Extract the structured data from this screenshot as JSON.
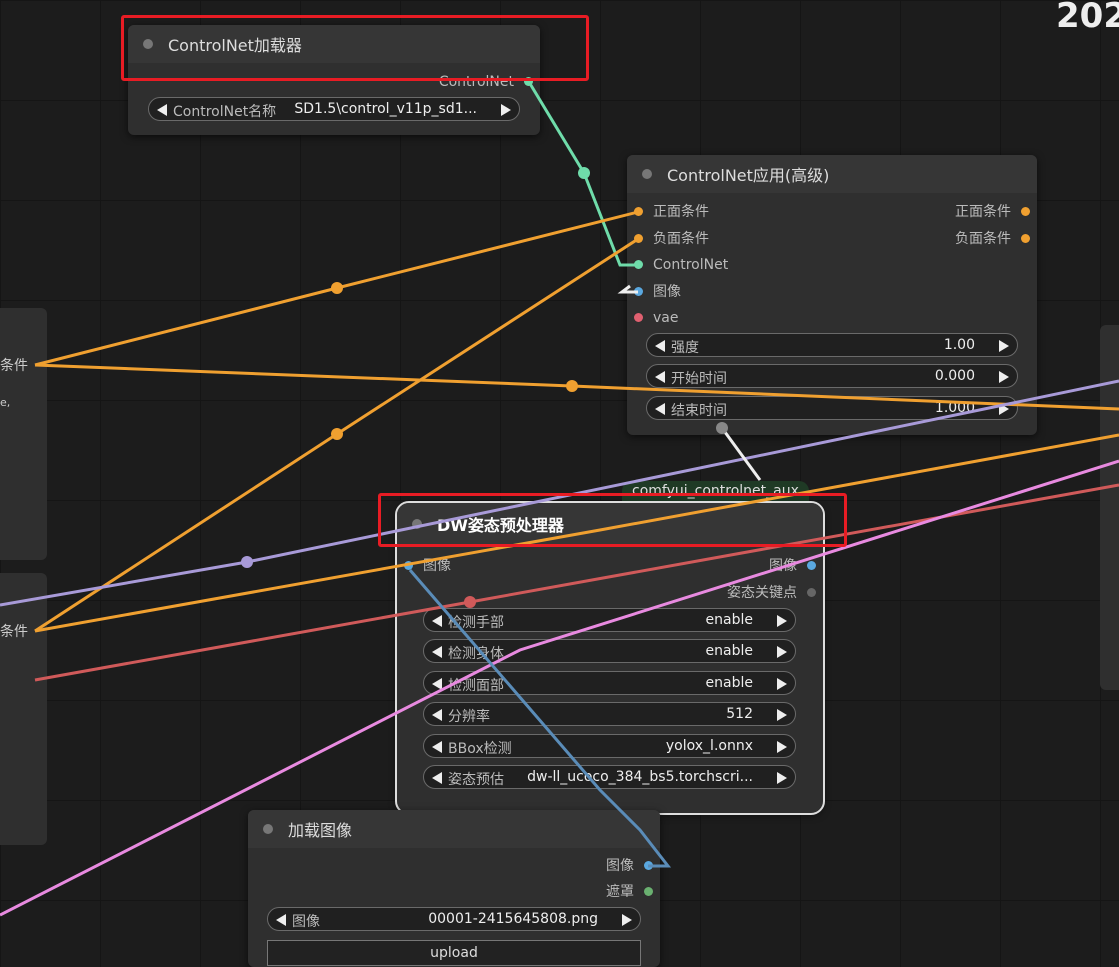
{
  "corner_text": "202",
  "side_labels": [
    "条件",
    "e,",
    "条件"
  ],
  "nodes": [
    {
      "title": "ControlNet加载器",
      "inputs": [],
      "outputs": [
        "ControlNet"
      ],
      "widgets": [
        {
          "label": "ControlNet名称",
          "value": "SD1.5\\control_v11p_sd1..."
        }
      ]
    },
    {
      "title": "ControlNet应用(高级)",
      "inputs": [
        "正面条件",
        "负面条件",
        "ControlNet",
        "图像",
        "vae"
      ],
      "outputs": [
        "正面条件",
        "负面条件"
      ],
      "widgets": [
        {
          "label": "强度",
          "value": "1.00"
        },
        {
          "label": "开始时间",
          "value": "0.000"
        },
        {
          "label": "结束时间",
          "value": "1.000"
        }
      ]
    },
    {
      "title": "DW姿态预处理器",
      "badge": "comfyui_controlnet_aux",
      "inputs": [
        "图像"
      ],
      "outputs": [
        "图像",
        "姿态关键点"
      ],
      "widgets": [
        {
          "label": "检测手部",
          "value": "enable"
        },
        {
          "label": "检测身体",
          "value": "enable"
        },
        {
          "label": "检测面部",
          "value": "enable"
        },
        {
          "label": "分辨率",
          "value": "512"
        },
        {
          "label": "BBox检测",
          "value": "yolox_l.onnx"
        },
        {
          "label": "姿态预估",
          "value": "dw-ll_ucoco_384_bs5.torchscri..."
        }
      ]
    },
    {
      "title": "加载图像",
      "inputs": [],
      "outputs": [
        "图像",
        "遮罩"
      ],
      "widgets": [
        {
          "label": "图像",
          "value": "00001-2415645808.png"
        }
      ],
      "button": "upload"
    }
  ]
}
